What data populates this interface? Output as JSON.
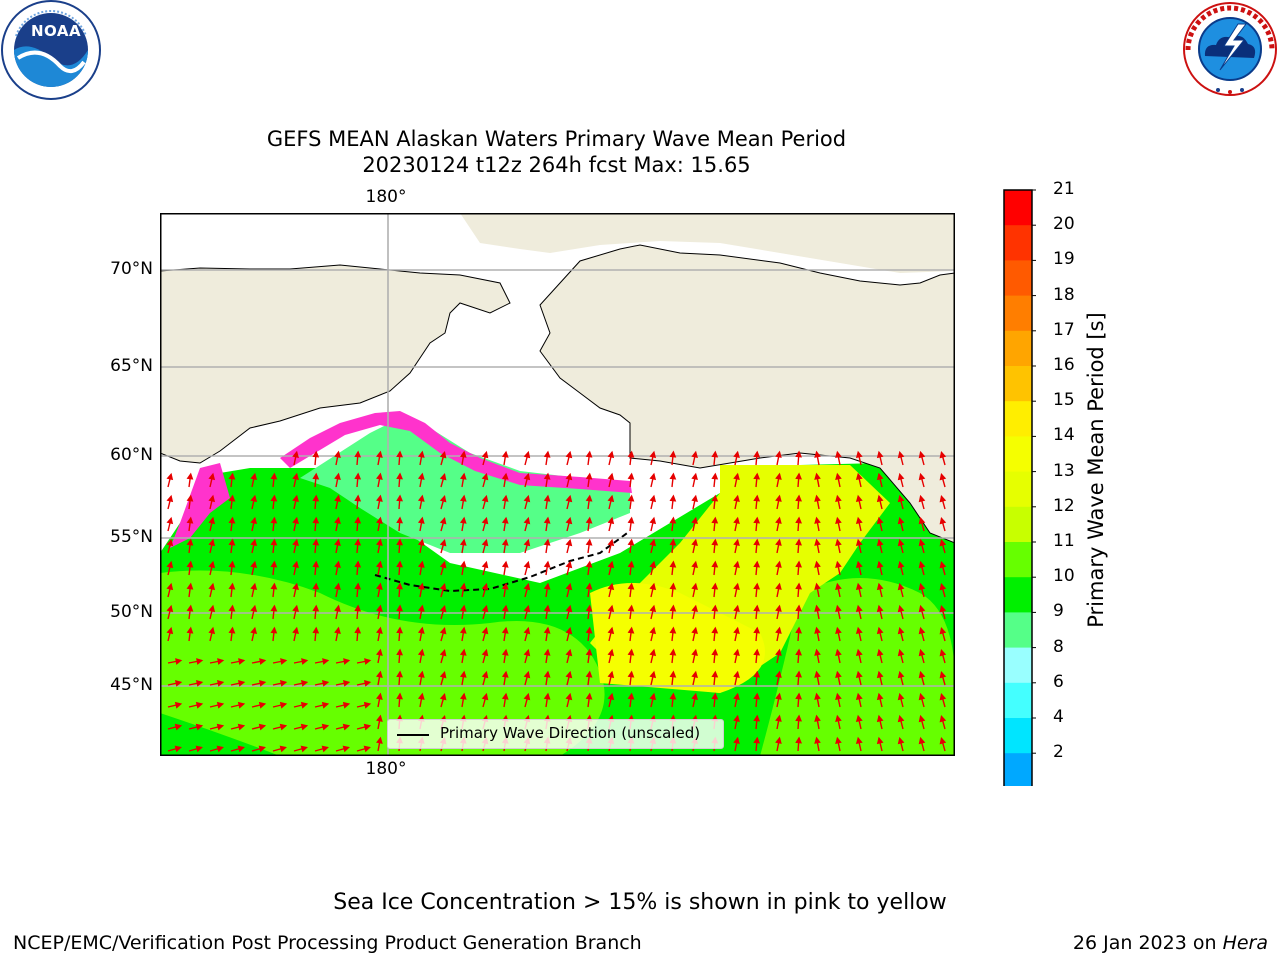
{
  "title": {
    "line1": "GEFS MEAN Alaskan Waters Primary Wave Mean Period",
    "line2": "20230124 t12z 264h fcst   Max: 15.65"
  },
  "logos": {
    "noaa": {
      "text": "NOAA",
      "ring_text": "NATIONAL OCEANIC AND ATMOSPHERIC ADMINISTRATION · U.S. DEPARTMENT OF COMMERCE"
    },
    "nws": {
      "ring_text": "NATIONAL WEATHER SERVICE"
    }
  },
  "map": {
    "lat_labels": [
      "70°N",
      "65°N",
      "60°N",
      "55°N",
      "50°N",
      "45°N"
    ],
    "lon_label_top": "180°",
    "lon_label_bottom": "180°",
    "grid": true,
    "legend_label": "Primary Wave Direction (unscaled)",
    "colors": {
      "land": "#efecdc",
      "open_water": "#ffffff",
      "sea_ice": "#ff33cc",
      "arrows": "#e60000",
      "coast": "#000000",
      "grid": "#b0b0b0"
    }
  },
  "colorbar": {
    "label": "Primary Wave Mean Period [s]",
    "ticks": [
      "21",
      "20",
      "19",
      "18",
      "17",
      "16",
      "15",
      "14",
      "13",
      "12",
      "11",
      "10",
      "9",
      "8",
      "6",
      "4",
      "2"
    ],
    "colors": [
      "#ff0000",
      "#ff3300",
      "#ff5a00",
      "#ff7e00",
      "#ffa500",
      "#ffc300",
      "#ffee00",
      "#f5ff00",
      "#e6ff00",
      "#c8ff00",
      "#66ff00",
      "#00f000",
      "#55ff88",
      "#99ffff",
      "#44ffff",
      "#00e5ff",
      "#00a8ff",
      "#0060ff"
    ],
    "extend_color": "#0000ff"
  },
  "notes": {
    "ice": "Sea Ice Concentration > 15% is shown in pink to yellow"
  },
  "footer": {
    "left": "NCEP/EMC/Verification Post Processing Product Generation Branch",
    "right_prefix": "26 Jan 2023 on ",
    "right_host": "Hera"
  }
}
